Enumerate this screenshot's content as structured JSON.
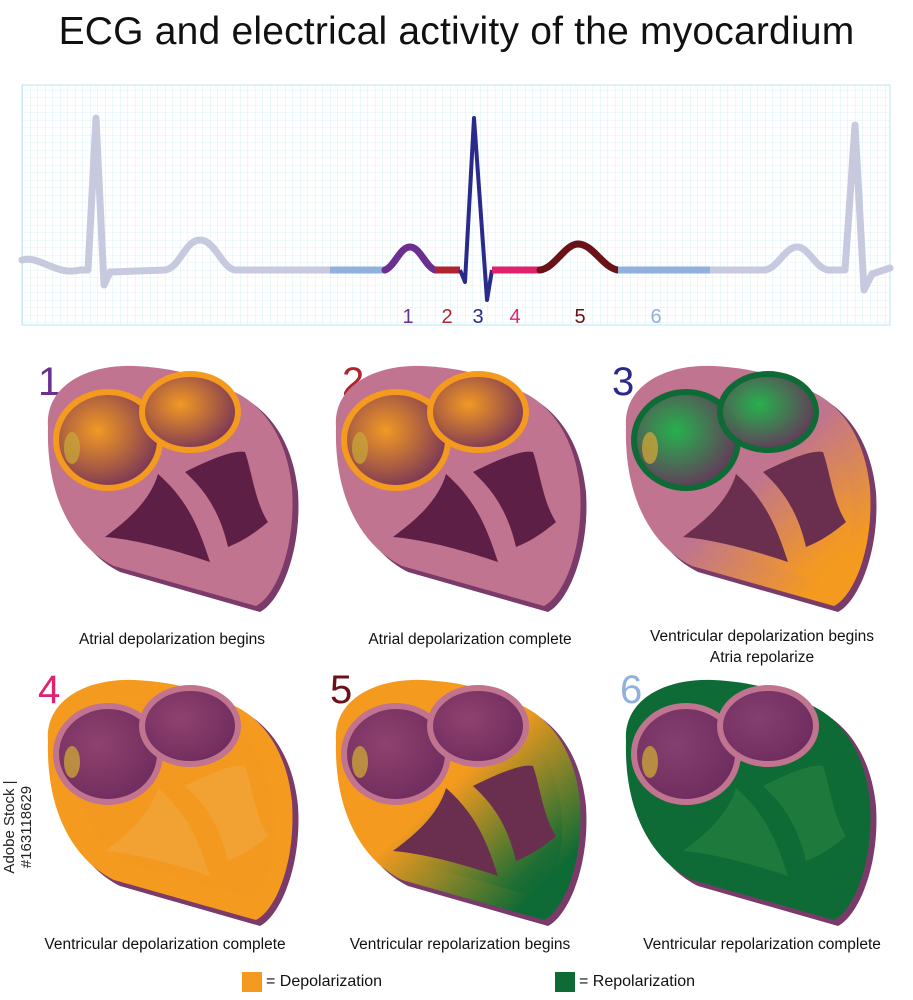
{
  "title": "ECG and electrical activity of the myocardium",
  "ecg_labels": [
    "1",
    "2",
    "3",
    "4",
    "5",
    "6"
  ],
  "segment_colors": [
    "#6a2f8f",
    "#b0242e",
    "#2a2a8c",
    "#e0216e",
    "#6b1218",
    "#8fb1dc"
  ],
  "panels": [
    {
      "number": "1",
      "caption": [
        "Atrial depolarization begins"
      ],
      "atria": "orange",
      "ventricles": "pink"
    },
    {
      "number": "2",
      "caption": [
        "Atrial depolarization complete"
      ],
      "atria": "orange",
      "ventricles": "pink"
    },
    {
      "number": "3",
      "caption": [
        "Ventricular depolarization begins",
        "Atria repolarize"
      ],
      "atria": "green",
      "ventricles": "pink-orange"
    },
    {
      "number": "4",
      "caption": [
        "Ventricular depolarization complete"
      ],
      "atria": "pink",
      "ventricles": "orange"
    },
    {
      "number": "5",
      "caption": [
        "Ventricular repolarization begins"
      ],
      "atria": "pink",
      "ventricles": "orange-green"
    },
    {
      "number": "6",
      "caption": [
        "Ventricular repolarization complete"
      ],
      "atria": "pink",
      "ventricles": "green"
    }
  ],
  "legend": {
    "depolarization": "= Depolarization",
    "repolarization": "= Repolarization",
    "depolarization_color": "#f49a1f",
    "repolarization_color": "#0f6b35"
  },
  "watermark": "Adobe Stock | #163118629"
}
